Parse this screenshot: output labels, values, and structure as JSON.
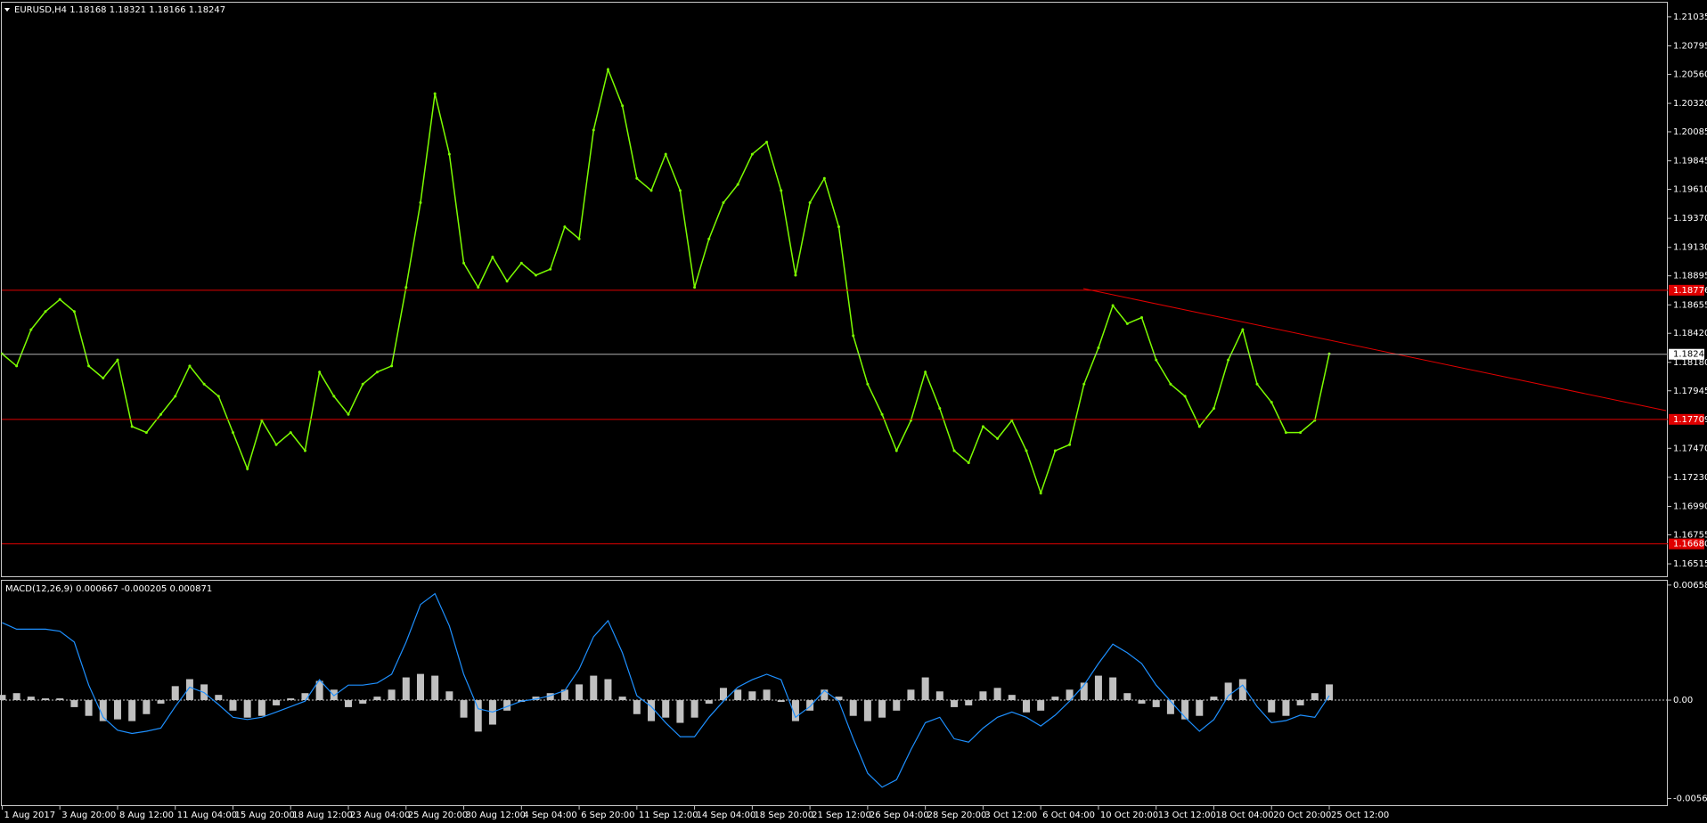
{
  "header": {
    "symbol_info": "EURUSD,H4  1.18168 1.18321 1.18166 1.18247"
  },
  "time_axis": [
    "1 Aug 2017",
    "3 Aug 20:00",
    "8 Aug 12:00",
    "11 Aug 04:00",
    "15 Aug 20:00",
    "18 Aug 12:00",
    "23 Aug 04:00",
    "25 Aug 20:00",
    "30 Aug 12:00",
    "4 Sep 04:00",
    "6 Sep 20:00",
    "11 Sep 12:00",
    "14 Sep 04:00",
    "18 Sep 20:00",
    "21 Sep 12:00",
    "26 Sep 04:00",
    "28 Sep 20:00",
    "3 Oct 12:00",
    "6 Oct 04:00",
    "10 Oct 20:00",
    "13 Oct 12:00",
    "18 Oct 04:00",
    "20 Oct 20:00",
    "25 Oct 12:00"
  ],
  "chart_data": [
    {
      "type": "line",
      "color": "#7cfc00",
      "values": [
        1.1825,
        1.1815,
        1.1845,
        1.186,
        1.187,
        1.186,
        1.1815,
        1.1805,
        1.182,
        1.1765,
        1.176,
        1.1775,
        1.179,
        1.1815,
        1.18,
        1.179,
        1.176,
        1.173,
        1.177,
        1.175,
        1.176,
        1.1745,
        1.181,
        1.179,
        1.1775,
        1.18,
        1.181,
        1.1815,
        1.188,
        1.195,
        1.204,
        1.199,
        1.19,
        1.188,
        1.1905,
        1.1885,
        1.19,
        1.189,
        1.1895,
        1.193,
        1.192,
        1.201,
        1.206,
        1.203,
        1.197,
        1.196,
        1.199,
        1.196,
        1.188,
        1.192,
        1.195,
        1.1965,
        1.199,
        1.2,
        1.196,
        1.189,
        1.195,
        1.197,
        1.193,
        1.184,
        1.18,
        1.1775,
        1.1745,
        1.177,
        1.181,
        1.178,
        1.1745,
        1.1735,
        1.1765,
        1.1755,
        1.177,
        1.1745,
        1.171,
        1.1745,
        1.175,
        1.18,
        1.183,
        1.1865,
        1.185,
        1.1855,
        1.182,
        1.18,
        1.179,
        1.1765,
        1.178,
        1.182,
        1.1845,
        1.18,
        1.1785,
        1.176,
        1.176,
        1.177,
        1.1825
      ],
      "ylim": [
        1.16405,
        1.21152
      ],
      "yticks": [
        1.21035,
        1.20795,
        {
          "value": 1.2056,
          "label": "1.20560"
        },
        {
          "value": 1.2032,
          "label": "1.20320"
        },
        1.20085,
        1.19845,
        {
          "value": 1.1961,
          "label": "1.19610"
        },
        {
          "value": 1.1937,
          "label": "1.19370"
        },
        {
          "value": 1.1913,
          "label": "1.19130"
        },
        1.18895,
        1.18655,
        {
          "value": 1.1842,
          "label": "1.18420"
        },
        {
          "value": 1.1818,
          "label": "1.18180"
        },
        1.17945,
        {
          "value": 1.1747,
          "label": "1.17470"
        },
        {
          "value": 1.1723,
          "label": "1.17230"
        },
        {
          "value": 1.1699,
          "label": "1.16990"
        },
        1.16755,
        1.16515
      ],
      "levels": [
        1.18776,
        1.17709,
        {
          "value": 1.1668,
          "label": "1.16680"
        }
      ],
      "current_price": 1.18247
    },
    {
      "type": "macd",
      "title": "MACD(12,26,9) 0.000667 -0.000205 0.000871",
      "histogram_color": "#c0c0c0",
      "line_color": "#1e90ff",
      "histogram": [
        0.0003,
        0.0004,
        0.0002,
        0.0001,
        0.0001,
        -0.0004,
        -0.0009,
        -0.0012,
        -0.0011,
        -0.0012,
        -0.0008,
        -0.0002,
        0.0008,
        0.0012,
        0.0009,
        0.0003,
        -0.0006,
        -0.001,
        -0.0009,
        -0.0003,
        0.0001,
        0.0004,
        0.0011,
        0.0006,
        -0.0004,
        -0.0002,
        0.0002,
        0.0006,
        0.0013,
        0.0015,
        0.0014,
        0.0005,
        -0.001,
        -0.0018,
        -0.0014,
        -0.0006,
        -0.0001,
        0.0002,
        0.0004,
        0.0006,
        0.0009,
        0.0014,
        0.0012,
        0.0002,
        -0.0008,
        -0.0012,
        -0.001,
        -0.0013,
        -0.001,
        -0.0002,
        0.0007,
        0.0006,
        0.0005,
        0.0006,
        -0.0001,
        -0.0012,
        -0.0006,
        0.0006,
        0.0002,
        -0.0009,
        -0.0012,
        -0.001,
        -0.0006,
        0.0006,
        0.0013,
        0.0005,
        -0.0004,
        -0.0003,
        0.0005,
        0.0007,
        0.0003,
        -0.0007,
        -0.0006,
        0.0002,
        0.0006,
        0.001,
        0.0014,
        0.0013,
        0.0004,
        -0.0002,
        -0.0004,
        -0.0008,
        -0.0011,
        -0.0009,
        0.0002,
        0.001,
        0.0012,
        0,
        -0.0007,
        -0.0009,
        -0.0003,
        0.0004,
        0.0009
      ],
      "macd": [
        0.00443,
        0.00406,
        0.00406,
        0.00406,
        0.00394,
        0.00332,
        0.00086,
        -0.00098,
        -0.00172,
        -0.00191,
        -0.00178,
        -0.0016,
        -0.00037,
        0.00074,
        0.00043,
        -0.00025,
        -0.00098,
        -0.00111,
        -0.00098,
        -0.00068,
        -0.00037,
        -6e-05,
        0.00117,
        0.00025,
        0.00086,
        0.00086,
        0.00098,
        0.00148,
        0.00332,
        0.00547,
        0.00609,
        0.00424,
        0.00148,
        -0.00049,
        -0.00068,
        -0.00037,
        -6e-05,
        6e-05,
        0.00025,
        0.00055,
        0.00178,
        0.00363,
        0.00455,
        0.00271,
        0.00025,
        -0.00037,
        -0.00129,
        -0.00209,
        -0.00209,
        -0.00098,
        -6e-05,
        0.00074,
        0.00117,
        0.00148,
        0.00117,
        -0.00098,
        -0.00037,
        0.00055,
        -6e-05,
        -0.00221,
        -0.00418,
        -0.00498,
        -0.00455,
        -0.00283,
        -0.00129,
        -0.00098,
        -0.00221,
        -0.0024,
        -0.0016,
        -0.00098,
        -0.00068,
        -0.00098,
        -0.00148,
        -0.00086,
        -6e-05,
        0.00086,
        0.00209,
        0.0032,
        0.00271,
        0.00209,
        0.00086,
        -6e-05,
        -0.00098,
        -0.00178,
        -0.00111,
        0.00025,
        0.00086,
        -0.00037,
        -0.00129,
        -0.00117,
        -0.00086,
        -0.00098,
        0.00025
      ],
      "ylim": [
        -0.00606,
        0.00683
      ],
      "yticks": [
        0.006582,
        {
          "value": 0,
          "label": "0.00"
        },
        {
          "value": -0.00563,
          "label": "-0.00563"
        }
      ]
    }
  ]
}
